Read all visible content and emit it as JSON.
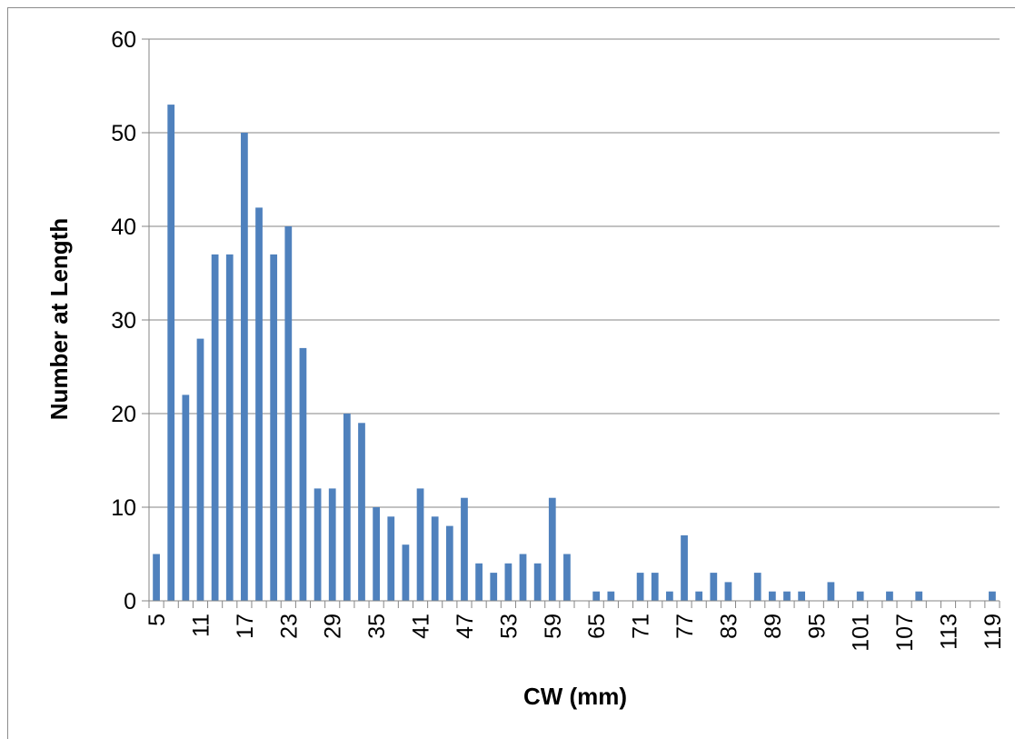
{
  "chart_data": {
    "type": "bar",
    "title": "",
    "xlabel": "CW (mm)",
    "ylabel": "Number at Length",
    "ylim": [
      0,
      60
    ],
    "yticks": [
      0,
      10,
      20,
      30,
      40,
      50,
      60
    ],
    "grid": true,
    "legend": "none",
    "bar_color": "#4f81bd",
    "grid_color": "#868686",
    "x_tick_labels": [
      "5",
      "11",
      "17",
      "23",
      "29",
      "35",
      "41",
      "47",
      "53",
      "59",
      "65",
      "71",
      "77",
      "83",
      "89",
      "95",
      "101",
      "107",
      "113",
      "119"
    ],
    "x": [
      5,
      7,
      9,
      11,
      13,
      15,
      17,
      19,
      21,
      23,
      25,
      27,
      29,
      31,
      33,
      35,
      37,
      39,
      41,
      43,
      45,
      47,
      49,
      51,
      53,
      55,
      57,
      59,
      61,
      63,
      65,
      67,
      69,
      71,
      73,
      75,
      77,
      79,
      81,
      83,
      85,
      87,
      89,
      91,
      93,
      95,
      97,
      99,
      101,
      103,
      105,
      107,
      109,
      111,
      113,
      115,
      117,
      119
    ],
    "values": [
      5,
      53,
      22,
      28,
      37,
      37,
      50,
      42,
      37,
      40,
      27,
      12,
      12,
      20,
      19,
      10,
      9,
      6,
      12,
      9,
      8,
      11,
      4,
      3,
      4,
      5,
      4,
      11,
      5,
      0,
      1,
      1,
      0,
      3,
      3,
      1,
      7,
      1,
      3,
      2,
      0,
      3,
      1,
      1,
      1,
      0,
      2,
      0,
      1,
      0,
      1,
      0,
      1,
      0,
      0,
      0,
      0,
      1
    ]
  }
}
